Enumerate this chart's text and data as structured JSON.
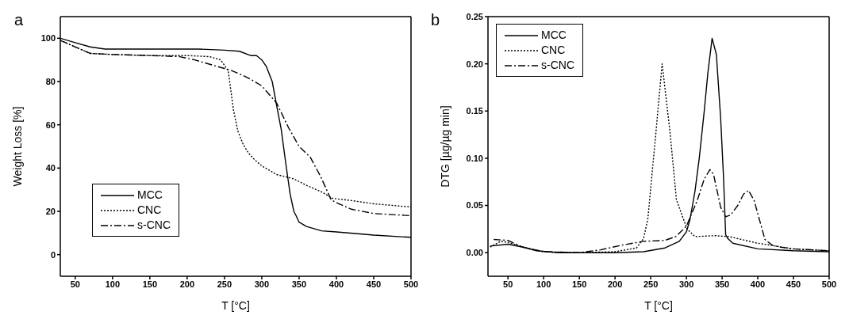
{
  "chart_data": [
    {
      "type": "line",
      "title": "a",
      "xlabel": "T [°C]",
      "ylabel": "Weight Loss [%]",
      "xlim": [
        30,
        500
      ],
      "ylim": [
        -10,
        110
      ],
      "xticks": [
        50,
        100,
        150,
        200,
        250,
        300,
        350,
        400,
        450,
        500
      ],
      "yticks": [
        0,
        20,
        40,
        60,
        80,
        100
      ],
      "grid": false,
      "legend": "bottom left",
      "marker": "none",
      "series": [
        {
          "name": "MCC",
          "color": "#000000",
          "line_style": "solid",
          "x": [
            30,
            50,
            70,
            90,
            150,
            215,
            250,
            270,
            285,
            293,
            300,
            306,
            314,
            321,
            326,
            332,
            338,
            343,
            346,
            350,
            360,
            380,
            400,
            450,
            500
          ],
          "values": [
            100,
            98,
            96,
            95,
            95,
            95,
            94.5,
            94,
            92,
            92,
            90,
            87,
            80,
            67,
            58,
            42.6,
            28,
            20,
            18,
            15,
            13,
            11,
            10.5,
            9,
            8
          ]
        },
        {
          "name": "CNC",
          "color": "#000000",
          "line_style": "dotted",
          "x": [
            30,
            50,
            70,
            100,
            150,
            200,
            230,
            245,
            255,
            262,
            268,
            275,
            282,
            290,
            300,
            320,
            343,
            360,
            380,
            395,
            420,
            450,
            500
          ],
          "values": [
            99,
            96,
            93,
            92.5,
            92,
            92,
            91.5,
            90,
            85,
            67,
            57,
            51,
            47,
            44,
            41,
            37,
            35,
            32,
            29,
            26,
            25,
            23.5,
            22
          ]
        },
        {
          "name": "s-CNC",
          "color": "#000000",
          "line_style": "dashed",
          "x": [
            30,
            50,
            70,
            100,
            150,
            190,
            210,
            240,
            260,
            280,
            300,
            320,
            336,
            350,
            365,
            379,
            393,
            400,
            420,
            450,
            500
          ],
          "values": [
            99,
            96,
            93,
            92.5,
            92,
            91.5,
            90,
            87,
            85,
            82,
            78,
            70,
            58.6,
            50,
            45,
            36,
            25.3,
            24,
            21,
            19,
            18
          ]
        }
      ]
    },
    {
      "type": "line",
      "title": "b",
      "xlabel": "T [°C]",
      "ylabel": "DTG [µg/µg min]",
      "xlim": [
        22,
        500
      ],
      "ylim": [
        -0.025,
        0.25
      ],
      "xticks": [
        50,
        100,
        150,
        200,
        250,
        300,
        350,
        400,
        450,
        500
      ],
      "yticks": [
        {
          "value": 0,
          "label": "0.00"
        },
        {
          "value": 0.05,
          "label": "0.05"
        },
        {
          "value": 0.1,
          "label": "0.10"
        },
        {
          "value": 0.15,
          "label": "0.15"
        },
        {
          "value": 0.2,
          "label": "0.20"
        },
        {
          "value": 0.25,
          "label": "0.25"
        }
      ],
      "grid": false,
      "legend": "top left",
      "marker": "none",
      "series": [
        {
          "name": "MCC",
          "color": "#000000",
          "line_style": "solid",
          "x": [
            25,
            50,
            70,
            90,
            120,
            200,
            240,
            270,
            290,
            300,
            305,
            312,
            318,
            325,
            330,
            336,
            342,
            348,
            352,
            355,
            358,
            365,
            400,
            450,
            500
          ],
          "values": [
            0.007,
            0.009,
            0.006,
            0.002,
            0,
            0,
            0.001,
            0.005,
            0.012,
            0.022,
            0.035,
            0.065,
            0.1,
            0.15,
            0.19,
            0.227,
            0.21,
            0.142,
            0.08,
            0.019,
            0.015,
            0.01,
            0.004,
            0.002,
            0.001
          ]
        },
        {
          "name": "CNC",
          "color": "#000000",
          "line_style": "dotted",
          "x": [
            25,
            40,
            50,
            70,
            100,
            150,
            200,
            230,
            240,
            246,
            257,
            266,
            277,
            286,
            301,
            312,
            340,
            360,
            400,
            450,
            500
          ],
          "values": [
            0.006,
            0.012,
            0.011,
            0.006,
            0.001,
            0,
            0.001,
            0.005,
            0.015,
            0.036,
            0.125,
            0.2,
            0.128,
            0.056,
            0.025,
            0.017,
            0.018,
            0.017,
            0.01,
            0.004,
            0.002
          ]
        },
        {
          "name": "s-CNC",
          "color": "#000000",
          "line_style": "dashed",
          "x": [
            30,
            50,
            70,
            100,
            150,
            180,
            210,
            240,
            270,
            285,
            300,
            315,
            325,
            333,
            338,
            348,
            355,
            362,
            372,
            380,
            387,
            395,
            410,
            420,
            430,
            450,
            500
          ],
          "values": [
            0.014,
            0.013,
            0.006,
            0.001,
            0,
            0.003,
            0.008,
            0.012,
            0.013,
            0.017,
            0.028,
            0.055,
            0.078,
            0.088,
            0.083,
            0.048,
            0.038,
            0.04,
            0.05,
            0.062,
            0.066,
            0.055,
            0.014,
            0.008,
            0.006,
            0.004,
            0.002
          ]
        }
      ]
    }
  ]
}
